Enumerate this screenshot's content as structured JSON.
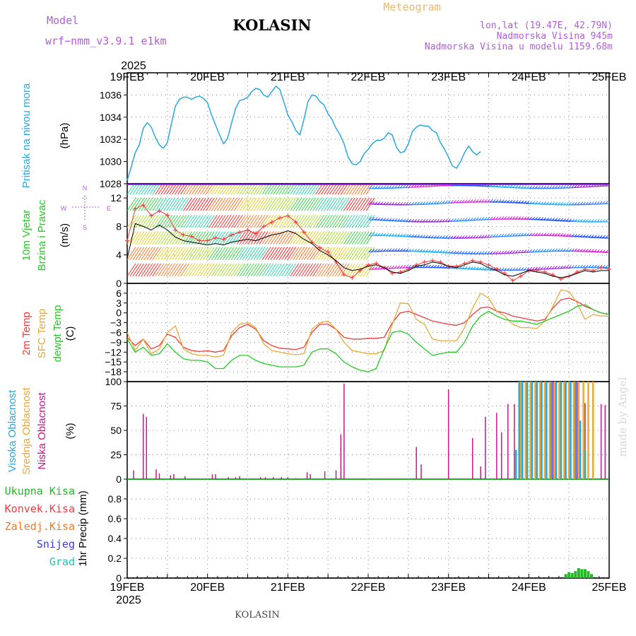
{
  "header": {
    "model_label": "Model",
    "model_name": "wrf−nmm_v3.9.1 e1km",
    "station": "KOLASIN",
    "product": "Meteogram",
    "coords": "lon,lat (19.47E, 42.79N)",
    "elevation": "Nadmorska Visina 945m",
    "model_elevation": "Nadmorska Visina u modelu 1159.68m",
    "credit": "made by Angel",
    "footer_station": "KOLASIN"
  },
  "colors": {
    "pressure": "#29a8e0",
    "t2m": "#ee3b3b",
    "tsfc": "#e8a93a",
    "dewpt": "#22cc22",
    "high_cloud": "#29a8e0",
    "mid_cloud": "#e8a93a",
    "low_cloud": "#c21a8a",
    "total_precip": "#22bb22",
    "conv_precip": "#ee3b3b",
    "frz_precip": "#f07a2a",
    "snow": "#3b3bd8",
    "hail": "#22c4b4",
    "wind_mean": "#000000",
    "wind_gust": "#ee3b3b"
  },
  "chart_data": [
    {
      "type": "line",
      "panel": "pressure",
      "ylabel_lines": [
        "Pritisak na nivou mora",
        "(hPa)"
      ],
      "x_time_labels": [
        "19FEB",
        "20FEB",
        "21FEB",
        "22FEB",
        "23FEB",
        "24FEB",
        "25FEB"
      ],
      "year": "2025",
      "ylim": [
        1028,
        1038
      ],
      "yticks": [
        1028,
        1030,
        1032,
        1034,
        1036
      ],
      "x_days": [
        0,
        0.05,
        0.1,
        0.15,
        0.2,
        0.25,
        0.3,
        0.35,
        0.4,
        0.45,
        0.5,
        0.55,
        0.6,
        0.65,
        0.7,
        0.75,
        0.8,
        0.85,
        0.9,
        0.95,
        1.0,
        1.05,
        1.1,
        1.15,
        1.2,
        1.25,
        1.3,
        1.35,
        1.4,
        1.45,
        1.5,
        1.55,
        1.6,
        1.65,
        1.7,
        1.75,
        1.8,
        1.85,
        1.9,
        1.95,
        2.0,
        2.05,
        2.1,
        2.15,
        2.2,
        2.25,
        2.3,
        2.35,
        2.4,
        2.45,
        2.5,
        2.55,
        2.6,
        2.65,
        2.7,
        2.75,
        2.8,
        2.85,
        2.9,
        2.95,
        3.0,
        3.05,
        3.1,
        3.15,
        3.2,
        3.25,
        3.3,
        3.35,
        3.4,
        3.45,
        3.5,
        3.55,
        3.6,
        3.65,
        3.7,
        3.75,
        3.8,
        3.85,
        3.9,
        3.95,
        4.0,
        4.05,
        4.1,
        4.15,
        4.2,
        4.25,
        4.3,
        4.35,
        4.4,
        4.45,
        4.5,
        4.55,
        4.6,
        4.65,
        4.7,
        4.75,
        4.8,
        4.85,
        4.9,
        4.95,
        5.0,
        5.05,
        5.1,
        5.15,
        5.2,
        5.25,
        5.3,
        5.35,
        5.4,
        5.45,
        5.5,
        5.55,
        5.6,
        5.65,
        5.7,
        5.75,
        5.8,
        5.85,
        5.9,
        5.95,
        6.0
      ],
      "series": [
        {
          "name": "Pritisak na nivou mora",
          "values": [
            1028.3,
            1029.5,
            1030.8,
            1031.5,
            1033.0,
            1033.5,
            1033.1,
            1032.2,
            1031.5,
            1031.2,
            1031.7,
            1033.4,
            1035.0,
            1035.6,
            1035.8,
            1035.8,
            1035.6,
            1035.8,
            1035.9,
            1035.7,
            1035.3,
            1034.2,
            1033.3,
            1032.4,
            1031.6,
            1032.1,
            1033.5,
            1034.8,
            1035.5,
            1035.6,
            1035.8,
            1036.3,
            1036.6,
            1036.5,
            1036.0,
            1035.8,
            1036.3,
            1036.8,
            1036.5,
            1035.4,
            1034.2,
            1033.6,
            1032.8,
            1032.4,
            1033.8,
            1035.4,
            1036.0,
            1035.9,
            1035.4,
            1035.1,
            1034.3,
            1033.8,
            1033.0,
            1032.4,
            1031.6,
            1030.4,
            1029.8,
            1029.7,
            1030.0,
            1030.7,
            1031.1,
            1031.6,
            1031.9,
            1031.9,
            1032.1,
            1032.6,
            1032.4,
            1031.3,
            1030.8,
            1030.9,
            1031.6,
            1032.7,
            1033.1,
            1033.3,
            1033.2,
            1033.2,
            1032.8,
            1032.6,
            1031.7,
            1031.1,
            1030.4,
            1029.6,
            1029.4,
            1030.0,
            1030.8,
            1031.4,
            1030.9,
            1030.6,
            1030.9
          ],
          "color": "#29a8e0"
        }
      ]
    },
    {
      "type": "line",
      "panel": "wind",
      "ylabel_lines": [
        "10m Vjetar",
        "Brzina i Pravac",
        "(m/s)"
      ],
      "compass_labels": [
        "N",
        "W",
        "E",
        "S"
      ],
      "ylim": [
        0,
        14
      ],
      "yticks": [
        0,
        4,
        8,
        12
      ],
      "band_levels": [
        2,
        4.3,
        6.5,
        8.8,
        11.2,
        13.5
      ],
      "band_colors_early": [
        "#ff2b2b",
        "#ff7b2b",
        "#e8d12b",
        "#a8e030",
        "#3bd84a",
        "#2bd8a8"
      ],
      "band_colors_late": [
        "#e02bd8",
        "#2b5bff",
        "#2bb4ff",
        "#3b7bff",
        "#a02be0",
        "#2b8bff"
      ],
      "x_days": [
        0,
        0.1,
        0.2,
        0.3,
        0.4,
        0.5,
        0.6,
        0.7,
        0.8,
        0.9,
        1.0,
        1.1,
        1.2,
        1.3,
        1.4,
        1.5,
        1.6,
        1.7,
        1.8,
        1.9,
        2.0,
        2.1,
        2.2,
        2.3,
        2.4,
        2.5,
        2.6,
        2.7,
        2.8,
        2.9,
        3.0,
        3.1,
        3.2,
        3.3,
        3.4,
        3.5,
        3.6,
        3.7,
        3.8,
        3.9,
        4.0,
        4.1,
        4.2,
        4.3,
        4.4,
        4.5,
        4.6,
        4.7,
        4.8,
        4.9,
        5.0,
        5.1,
        5.2,
        5.3,
        5.4,
        5.5,
        5.6,
        5.7,
        5.8,
        5.9,
        6.0
      ],
      "series": [
        {
          "name": "mean",
          "values": [
            3.5,
            8.4,
            8.0,
            7.5,
            8.2,
            7.5,
            6.5,
            6.0,
            5.8,
            5.6,
            5.4,
            5.6,
            5.4,
            5.8,
            6.0,
            6.2,
            6.0,
            6.4,
            6.8,
            7.0,
            7.4,
            7.0,
            6.2,
            5.6,
            4.6,
            4.0,
            3.2,
            2.2,
            1.8,
            2.0,
            2.4,
            2.6,
            2.2,
            1.6,
            1.4,
            1.8,
            2.4,
            2.6,
            3.0,
            2.8,
            2.4,
            2.2,
            2.6,
            3.0,
            2.8,
            2.2,
            1.8,
            1.2,
            1.0,
            1.4,
            1.8,
            1.6,
            1.4,
            1.0,
            0.8,
            1.0,
            1.4,
            1.8,
            1.6,
            1.8,
            1.8
          ],
          "color": "#000000"
        },
        {
          "name": "gust",
          "values": [
            6.0,
            10.5,
            11.0,
            9.5,
            10.2,
            9.6,
            7.5,
            6.8,
            6.6,
            6.0,
            6.0,
            6.4,
            6.2,
            6.8,
            7.2,
            7.5,
            7.0,
            8.0,
            8.6,
            9.2,
            9.5,
            8.6,
            7.2,
            5.8,
            5.0,
            4.4,
            3.0,
            1.2,
            0.8,
            1.8,
            2.6,
            2.8,
            2.2,
            1.4,
            1.6,
            2.0,
            2.6,
            3.0,
            3.2,
            3.0,
            2.4,
            2.4,
            2.8,
            3.2,
            3.0,
            2.6,
            2.0,
            1.4,
            0.4,
            1.0,
            1.8,
            1.8,
            1.6,
            1.2,
            0.6,
            1.0,
            1.6,
            2.0,
            1.8,
            2.2,
            2.0
          ],
          "color": "#ee3b3b"
        }
      ]
    },
    {
      "type": "line",
      "panel": "temperature",
      "ylabel_lines": [
        "2m Temp",
        "SFC Temp",
        "dewpt Temp",
        "(C)"
      ],
      "ylim": [
        -21,
        9
      ],
      "yticks": [
        -18,
        -15,
        -12,
        -9,
        -6,
        -3,
        0,
        3,
        6
      ],
      "x_days": [
        0,
        0.1,
        0.2,
        0.3,
        0.4,
        0.5,
        0.6,
        0.7,
        0.8,
        0.9,
        1.0,
        1.1,
        1.2,
        1.3,
        1.4,
        1.5,
        1.6,
        1.7,
        1.8,
        1.9,
        2.0,
        2.1,
        2.2,
        2.3,
        2.4,
        2.5,
        2.6,
        2.7,
        2.8,
        2.9,
        3.0,
        3.1,
        3.2,
        3.3,
        3.4,
        3.5,
        3.6,
        3.7,
        3.8,
        3.9,
        4.0,
        4.1,
        4.2,
        4.3,
        4.4,
        4.5,
        4.6,
        4.7,
        4.8,
        4.9,
        5.0,
        5.1,
        5.2,
        5.3,
        5.4,
        5.5,
        5.6,
        5.7,
        5.8,
        5.9,
        6.0
      ],
      "series": [
        {
          "name": "2m Temp",
          "values": [
            -7.5,
            -10,
            -8,
            -11,
            -10,
            -6.5,
            -7.5,
            -10.5,
            -11.5,
            -11.8,
            -11.6,
            -12.0,
            -11.5,
            -7.0,
            -4.5,
            -3.5,
            -5.0,
            -8.5,
            -10.0,
            -10.8,
            -11.0,
            -11.2,
            -10.5,
            -6.0,
            -3.5,
            -3.5,
            -5.0,
            -7.5,
            -8.0,
            -8.0,
            -7.8,
            -7.8,
            -7.5,
            -3.0,
            0.0,
            0.5,
            -0.5,
            -1.5,
            -2.5,
            -3.0,
            -3.5,
            -3.8,
            -3.0,
            -0.5,
            1.5,
            1.8,
            0.5,
            0.0,
            -1.0,
            -1.5,
            -2.0,
            -2.5,
            -2.0,
            1.5,
            4.0,
            4.5,
            3.5,
            2.0,
            1.0,
            0.0,
            -0.5
          ],
          "color": "#ee3b3b"
        },
        {
          "name": "SFC Temp",
          "values": [
            -6.0,
            -11.5,
            -8.0,
            -12.5,
            -11.0,
            -6.0,
            -4.0,
            -11.0,
            -12.5,
            -13.0,
            -13.0,
            -13.5,
            -13.0,
            -6.0,
            -3.5,
            -3.0,
            -4.5,
            -9.5,
            -11.5,
            -12.0,
            -12.5,
            -12.8,
            -12.5,
            -5.0,
            -3.0,
            -2.5,
            -5.0,
            -9.0,
            -11.5,
            -12.0,
            -12.5,
            -12.5,
            -11.5,
            -3.5,
            3.0,
            2.8,
            -2.0,
            -3.5,
            -8.0,
            -8.5,
            -8.5,
            -8.5,
            -4.5,
            1.5,
            6.0,
            4.5,
            0.5,
            -1.0,
            -3.5,
            -4.5,
            -4.5,
            -4.8,
            -2.5,
            2.0,
            7.0,
            6.5,
            3.0,
            -2.0,
            -0.5,
            -1.0,
            -1.0
          ],
          "color": "#e8a93a"
        },
        {
          "name": "dewpt Temp",
          "values": [
            -8.0,
            -12.0,
            -10.5,
            -13.0,
            -12.5,
            -9.5,
            -12.0,
            -14.0,
            -14.5,
            -14.5,
            -15.0,
            -17.0,
            -17.0,
            -14.5,
            -13.0,
            -13.0,
            -14.5,
            -15.5,
            -16.0,
            -16.5,
            -16.5,
            -16.5,
            -16.0,
            -12.0,
            -11.0,
            -11.0,
            -12.5,
            -15.0,
            -16.5,
            -17.5,
            -18.0,
            -17.0,
            -11.0,
            -6.0,
            -5.5,
            -6.5,
            -9.0,
            -11.0,
            -13.0,
            -12.5,
            -12.0,
            -12.0,
            -9.0,
            -4.0,
            -1.0,
            0.5,
            -1.0,
            -2.0,
            -2.5,
            -2.5,
            -3.0,
            -3.5,
            -2.5,
            -1.5,
            -0.5,
            0.5,
            2.0,
            2.5,
            1.0,
            0.0,
            -0.5
          ],
          "color": "#22cc22"
        }
      ]
    },
    {
      "type": "bar",
      "panel": "cloud",
      "ylabel_lines": [
        "Visoka Oblacnost",
        "Srednja Oblacnost",
        "Niska Oblacnost",
        "(%)"
      ],
      "ylim": [
        0,
        100
      ],
      "yticks": [
        0,
        25,
        50,
        75,
        100
      ],
      "series": [
        {
          "name": "Niska Oblacnost",
          "color": "#c21a8a",
          "x_days": [
            0.08,
            0.2,
            0.24,
            0.36,
            0.4,
            0.54,
            0.58,
            0.72,
            1.06,
            1.1,
            1.26,
            1.35,
            1.4,
            1.66,
            1.72,
            1.82,
            1.92,
            2.0,
            2.1,
            2.24,
            2.28,
            2.46,
            2.6,
            2.66,
            2.7,
            3.6,
            3.66,
            4.0,
            4.3,
            4.4,
            4.46,
            4.6,
            4.66,
            4.74,
            4.82,
            4.9,
            5.1,
            5.2,
            5.3,
            5.4,
            5.5,
            5.6,
            5.7,
            5.8,
            5.9,
            5.95
          ],
          "values": [
            9,
            67,
            64,
            10,
            6,
            4,
            5,
            3,
            5,
            5,
            2,
            2,
            3,
            2,
            2,
            2,
            2,
            2,
            1,
            7,
            5,
            8,
            9,
            46,
            98,
            33,
            15,
            92,
            42,
            13,
            64,
            68,
            48,
            77,
            77,
            78,
            100,
            100,
            100,
            100,
            100,
            100,
            78,
            78,
            77,
            76
          ]
        },
        {
          "name": "Srednja Oblacnost",
          "color": "#e8a93a",
          "x_days": [
            4.9,
            4.96,
            5.02,
            5.08,
            5.14,
            5.2,
            5.26,
            5.32,
            5.38,
            5.44,
            5.5,
            5.56,
            5.62,
            5.68,
            5.74,
            5.8
          ],
          "values": [
            100,
            100,
            100,
            100,
            100,
            100,
            100,
            100,
            100,
            100,
            100,
            100,
            100,
            100,
            100,
            100
          ]
        },
        {
          "name": "Visoka Oblacnost",
          "color": "#29a8e0",
          "x_days": [
            4.84,
            4.88,
            4.92,
            4.98,
            5.04,
            5.1,
            5.16,
            5.22,
            5.28,
            5.34,
            5.4,
            5.46,
            5.52,
            5.58,
            5.64,
            5.7
          ],
          "values": [
            30,
            100,
            100,
            100,
            100,
            100,
            100,
            100,
            100,
            100,
            100,
            100,
            100,
            100,
            60,
            30
          ]
        }
      ]
    },
    {
      "type": "bar",
      "panel": "precip",
      "ylabel_lines": [
        "1hr Precip",
        "(mm)"
      ],
      "legend": [
        "Ukupna Kisa",
        "Konvek.Kisa",
        "Zaledj.Kisa",
        "Snijeg",
        "Grad"
      ],
      "ylim": [
        0,
        1.0
      ],
      "yticks": [
        0,
        0.2,
        0.4,
        0.6,
        0.8
      ],
      "series": [
        {
          "name": "Ukupna Kisa",
          "color": "#22bb22",
          "x_days": [
            5.46,
            5.5,
            5.54,
            5.58,
            5.62,
            5.66,
            5.7,
            5.74,
            5.78
          ],
          "values": [
            0.04,
            0.06,
            0.05,
            0.07,
            0.1,
            0.09,
            0.09,
            0.07,
            0.04
          ]
        }
      ]
    }
  ]
}
